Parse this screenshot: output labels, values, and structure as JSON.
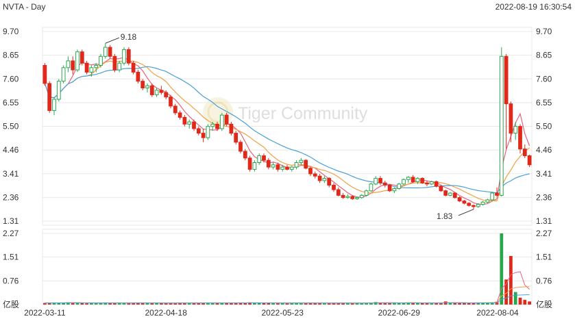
{
  "header": {
    "symbol_period": "NVTA - Day",
    "timestamp": "2022-08-19 16:30:54"
  },
  "watermark": {
    "text": "Tiger Community",
    "icon": "tiger-logo-icon"
  },
  "colors": {
    "up": "#27a64c",
    "down": "#e0281b",
    "ma5": "#e8637a",
    "ma10": "#f0a040",
    "ma20": "#4a9fd8",
    "grid": "#e8e8e8",
    "axis_text": "#333333"
  },
  "chart_data": [
    {
      "type": "candlestick",
      "title": "NVTA - Day",
      "y_ticks": [
        "9.70",
        "8.65",
        "7.60",
        "6.55",
        "5.50",
        "4.46",
        "3.41",
        "2.36",
        "1.31"
      ],
      "ylim": [
        1.31,
        9.7
      ],
      "x_ticks": [
        "2022-03-11",
        "2022-04-18",
        "2022-05-23",
        "2022-06-29",
        "2022-08-04"
      ],
      "annotations": [
        {
          "text": "9.18",
          "at": "high"
        },
        {
          "text": "1.83",
          "at": "low"
        }
      ],
      "moving_averages": [
        "MA5",
        "MA10",
        "MA20"
      ],
      "ohlc": [
        [
          8.2,
          8.3,
          7.3,
          7.4
        ],
        [
          7.4,
          7.5,
          6.1,
          6.2
        ],
        [
          6.2,
          6.8,
          6.0,
          6.7
        ],
        [
          6.7,
          7.6,
          6.6,
          7.5
        ],
        [
          7.5,
          8.2,
          7.4,
          8.1
        ],
        [
          8.1,
          8.6,
          7.9,
          8.4
        ],
        [
          8.4,
          8.6,
          7.8,
          8.0
        ],
        [
          8.0,
          8.9,
          7.9,
          8.8
        ],
        [
          8.8,
          8.9,
          8.2,
          8.3
        ],
        [
          8.3,
          8.4,
          7.8,
          7.9
        ],
        [
          7.9,
          8.2,
          7.7,
          8.1
        ],
        [
          8.1,
          8.3,
          7.9,
          8.2
        ],
        [
          8.2,
          8.7,
          8.1,
          8.6
        ],
        [
          8.6,
          9.18,
          8.5,
          9.0
        ],
        [
          9.0,
          9.1,
          8.5,
          8.6
        ],
        [
          8.6,
          8.7,
          7.9,
          8.0
        ],
        [
          8.0,
          8.4,
          7.9,
          8.3
        ],
        [
          8.3,
          9.0,
          8.2,
          8.9
        ],
        [
          8.9,
          9.0,
          8.2,
          8.3
        ],
        [
          8.3,
          8.4,
          7.8,
          7.9
        ],
        [
          7.9,
          8.0,
          7.4,
          7.5
        ],
        [
          7.5,
          7.6,
          7.1,
          7.2
        ],
        [
          7.2,
          7.4,
          7.0,
          7.3
        ],
        [
          7.3,
          7.4,
          6.8,
          6.9
        ],
        [
          6.9,
          7.2,
          6.8,
          7.1
        ],
        [
          7.1,
          7.3,
          6.9,
          7.0
        ],
        [
          7.0,
          7.1,
          6.7,
          6.8
        ],
        [
          6.8,
          6.9,
          6.3,
          6.4
        ],
        [
          6.4,
          6.5,
          6.0,
          6.1
        ],
        [
          6.1,
          6.2,
          5.8,
          5.9
        ],
        [
          5.9,
          6.0,
          5.5,
          5.6
        ],
        [
          5.6,
          5.8,
          5.4,
          5.7
        ],
        [
          5.7,
          5.8,
          5.3,
          5.4
        ],
        [
          5.4,
          5.5,
          5.1,
          5.2
        ],
        [
          5.2,
          5.4,
          4.8,
          5.0
        ],
        [
          5.0,
          5.6,
          4.9,
          5.5
        ],
        [
          5.5,
          5.7,
          5.3,
          5.6
        ],
        [
          5.6,
          5.7,
          5.3,
          5.4
        ],
        [
          5.4,
          6.1,
          5.3,
          6.0
        ],
        [
          6.0,
          6.1,
          5.5,
          5.6
        ],
        [
          5.6,
          5.7,
          5.1,
          5.2
        ],
        [
          5.2,
          5.3,
          4.7,
          4.8
        ],
        [
          4.8,
          4.9,
          4.3,
          4.4
        ],
        [
          4.4,
          4.5,
          4.0,
          4.1
        ],
        [
          4.1,
          4.2,
          3.5,
          3.6
        ],
        [
          3.6,
          4.0,
          3.5,
          3.9
        ],
        [
          3.9,
          4.3,
          3.8,
          4.2
        ],
        [
          4.2,
          4.3,
          3.9,
          4.0
        ],
        [
          4.0,
          4.1,
          3.6,
          3.7
        ],
        [
          3.7,
          3.9,
          3.6,
          3.8
        ],
        [
          3.8,
          3.9,
          3.5,
          3.6
        ],
        [
          3.6,
          3.8,
          3.5,
          3.7
        ],
        [
          3.7,
          3.8,
          3.55,
          3.6
        ],
        [
          3.6,
          3.75,
          3.5,
          3.7
        ],
        [
          3.7,
          4.0,
          3.6,
          3.9
        ],
        [
          3.9,
          4.1,
          3.8,
          4.0
        ],
        [
          4.0,
          4.05,
          3.6,
          3.65
        ],
        [
          3.65,
          3.7,
          3.3,
          3.4
        ],
        [
          3.4,
          3.5,
          3.2,
          3.3
        ],
        [
          3.3,
          3.4,
          3.0,
          3.1
        ],
        [
          3.1,
          3.3,
          3.0,
          3.2
        ],
        [
          3.2,
          3.25,
          2.8,
          2.9
        ],
        [
          2.9,
          3.0,
          2.6,
          2.7
        ],
        [
          2.7,
          2.8,
          2.4,
          2.45
        ],
        [
          2.45,
          2.55,
          2.3,
          2.35
        ],
        [
          2.35,
          2.5,
          2.3,
          2.4
        ],
        [
          2.4,
          2.45,
          2.25,
          2.3
        ],
        [
          2.3,
          2.4,
          2.25,
          2.35
        ],
        [
          2.35,
          2.5,
          2.3,
          2.45
        ],
        [
          2.45,
          2.7,
          2.4,
          2.65
        ],
        [
          2.65,
          3.0,
          2.6,
          2.95
        ],
        [
          2.95,
          3.3,
          2.9,
          3.2
        ],
        [
          3.2,
          3.3,
          2.9,
          3.0
        ],
        [
          3.0,
          3.1,
          2.8,
          2.9
        ],
        [
          2.9,
          2.95,
          2.6,
          2.65
        ],
        [
          2.65,
          2.8,
          2.55,
          2.75
        ],
        [
          2.75,
          3.0,
          2.7,
          2.95
        ],
        [
          2.95,
          3.2,
          2.9,
          3.15
        ],
        [
          3.15,
          3.3,
          3.0,
          3.25
        ],
        [
          3.25,
          3.35,
          3.0,
          3.05
        ],
        [
          3.05,
          3.25,
          2.95,
          3.2
        ],
        [
          3.2,
          3.25,
          2.95,
          3.0
        ],
        [
          3.0,
          3.1,
          2.85,
          2.95
        ],
        [
          2.95,
          3.1,
          2.9,
          3.05
        ],
        [
          3.05,
          3.1,
          2.8,
          2.85
        ],
        [
          2.85,
          2.9,
          2.6,
          2.65
        ],
        [
          2.65,
          2.7,
          2.4,
          2.45
        ],
        [
          2.45,
          2.6,
          2.4,
          2.55
        ],
        [
          2.55,
          2.6,
          2.3,
          2.35
        ],
        [
          2.35,
          2.4,
          2.15,
          2.2
        ],
        [
          2.2,
          2.25,
          2.05,
          2.1
        ],
        [
          2.1,
          2.15,
          1.95,
          2.0
        ],
        [
          2.0,
          2.05,
          1.83,
          1.95
        ],
        [
          1.95,
          2.1,
          1.9,
          2.05
        ],
        [
          2.05,
          2.2,
          2.0,
          2.15
        ],
        [
          2.15,
          2.3,
          2.1,
          2.25
        ],
        [
          2.25,
          2.6,
          2.2,
          2.55
        ],
        [
          2.55,
          2.8,
          2.4,
          2.45
        ],
        [
          2.45,
          9.0,
          2.4,
          8.6
        ],
        [
          8.6,
          8.7,
          4.5,
          6.5
        ],
        [
          6.5,
          6.6,
          4.8,
          5.2
        ],
        [
          5.2,
          5.7,
          4.9,
          5.5
        ],
        [
          5.5,
          5.6,
          4.3,
          4.5
        ],
        [
          4.5,
          4.7,
          4.1,
          4.2
        ],
        [
          4.2,
          4.25,
          3.7,
          3.8
        ]
      ],
      "volume_ticks": [
        "2.27",
        "1.51",
        "0.76",
        "亿股"
      ],
      "volume_max": 2.27,
      "volume": [
        0.05,
        0.06,
        0.05,
        0.06,
        0.05,
        0.07,
        0.06,
        0.05,
        0.05,
        0.04,
        0.05,
        0.05,
        0.05,
        0.06,
        0.05,
        0.05,
        0.05,
        0.06,
        0.05,
        0.05,
        0.06,
        0.05,
        0.05,
        0.05,
        0.05,
        0.05,
        0.05,
        0.05,
        0.05,
        0.06,
        0.05,
        0.05,
        0.05,
        0.05,
        0.06,
        0.05,
        0.05,
        0.05,
        0.06,
        0.06,
        0.05,
        0.05,
        0.06,
        0.05,
        0.07,
        0.05,
        0.05,
        0.05,
        0.05,
        0.05,
        0.04,
        0.05,
        0.04,
        0.05,
        0.06,
        0.05,
        0.05,
        0.05,
        0.05,
        0.05,
        0.04,
        0.05,
        0.05,
        0.05,
        0.05,
        0.05,
        0.04,
        0.05,
        0.04,
        0.05,
        0.06,
        0.08,
        0.06,
        0.05,
        0.05,
        0.05,
        0.06,
        0.06,
        0.06,
        0.05,
        0.05,
        0.05,
        0.05,
        0.04,
        0.05,
        0.05,
        0.1,
        0.06,
        0.05,
        0.05,
        0.05,
        0.05,
        0.05,
        0.05,
        0.06,
        0.06,
        0.07,
        0.09,
        2.27,
        0.8,
        1.55,
        0.4,
        0.22,
        0.15,
        0.1
      ]
    }
  ]
}
